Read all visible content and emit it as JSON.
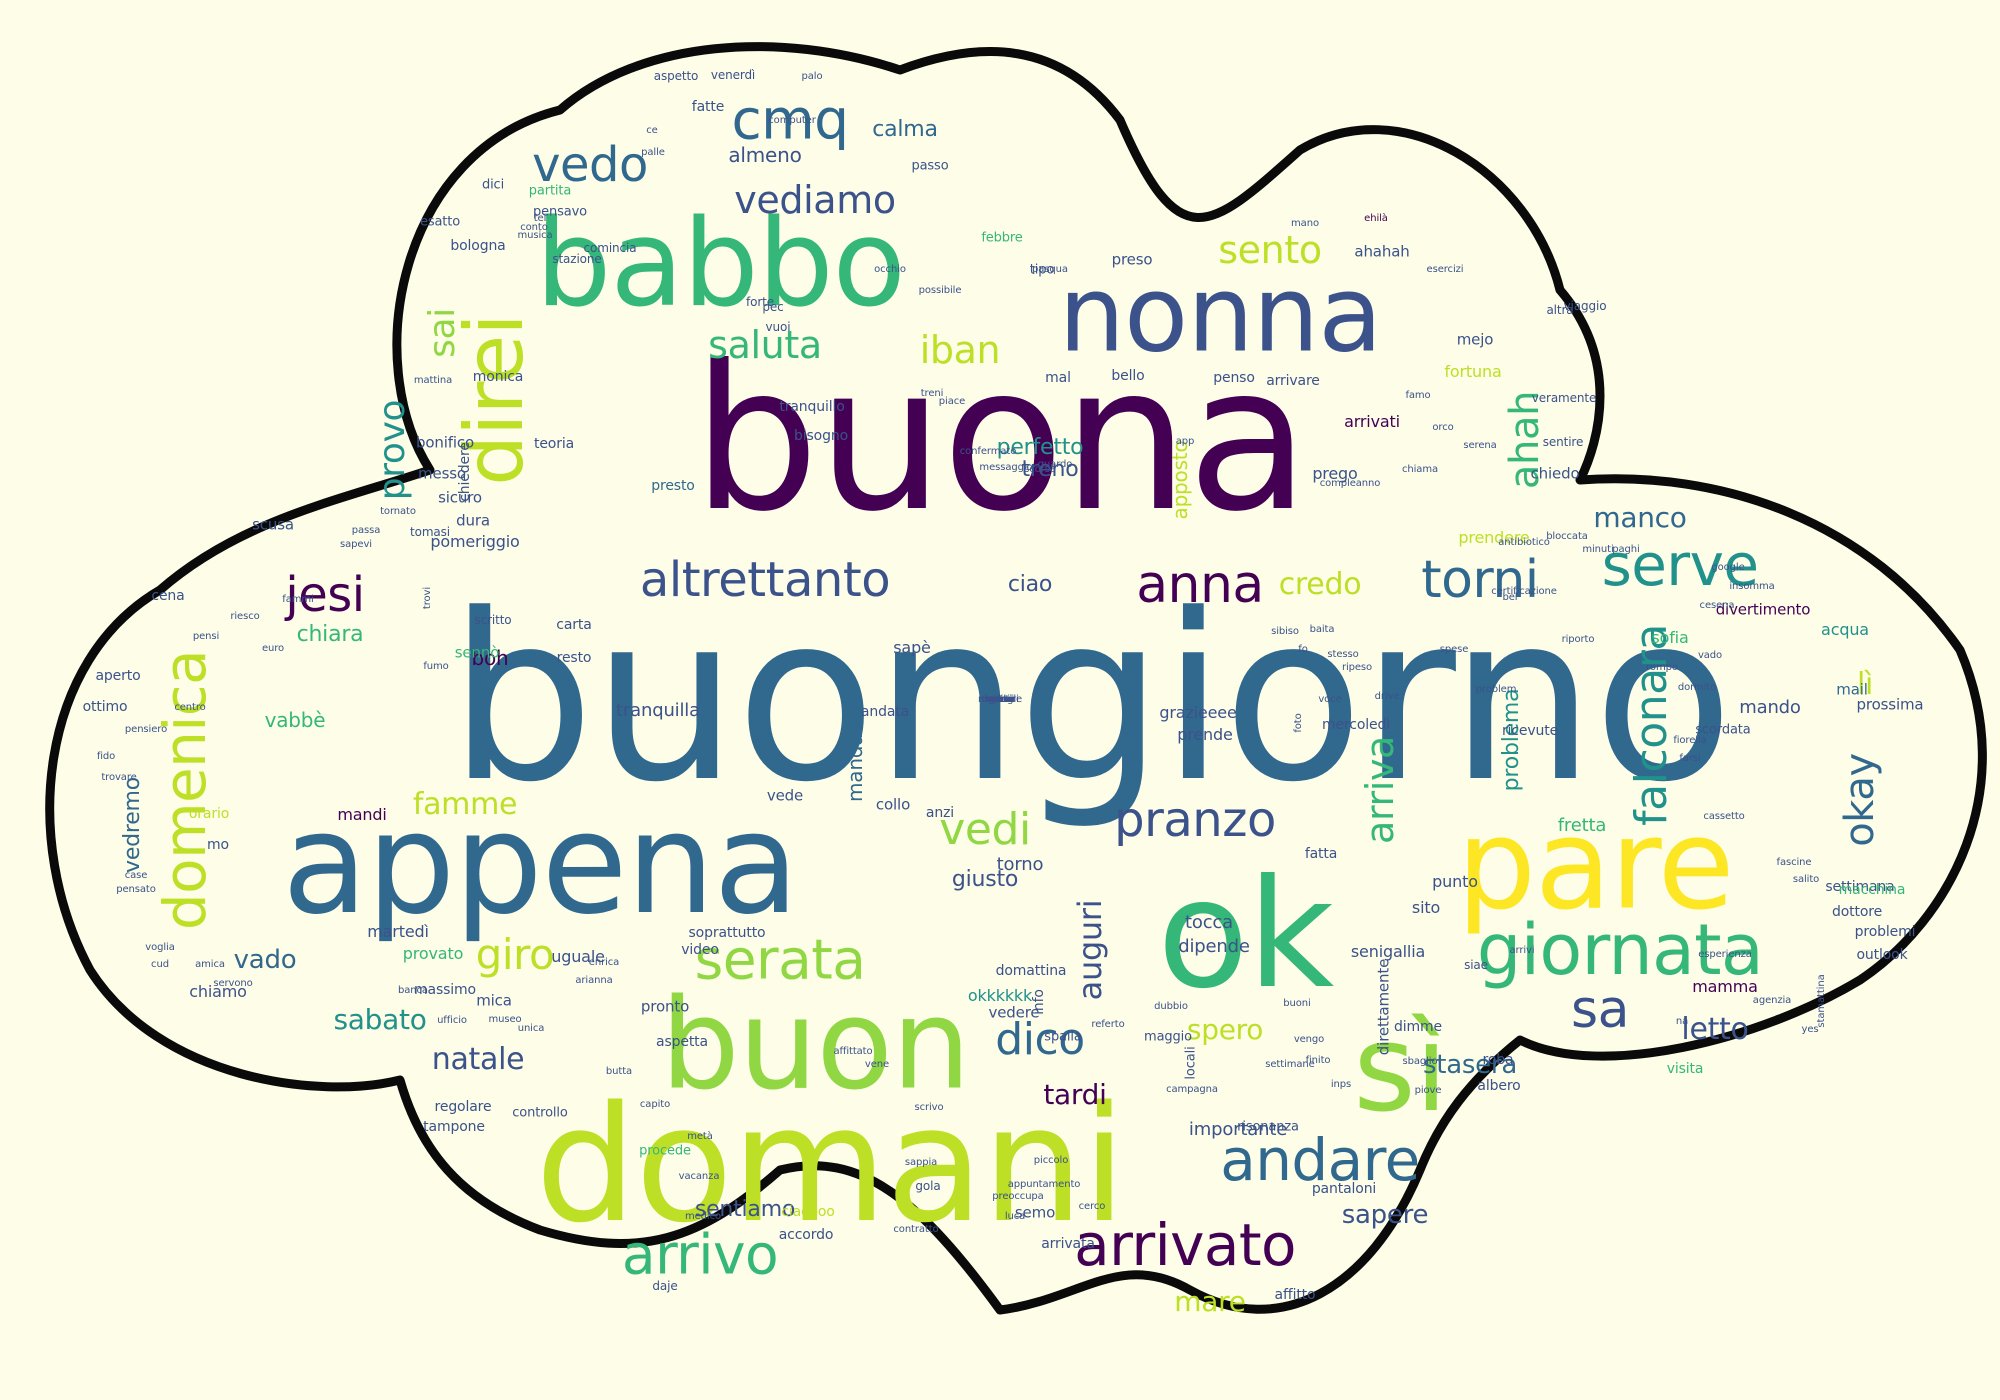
{
  "palette": {
    "background": "#fdfde8",
    "cloud_fill": "#fdfde8",
    "cloud_outline": "#0a0a0a",
    "shades": [
      "#440154",
      "#3b528b",
      "#31688e",
      "#21918c",
      "#35b779",
      "#90d743",
      "#bddf26",
      "#fde725"
    ]
  },
  "words": [
    {
      "t": "buongiorno",
      "c": "#31688e"
    },
    {
      "t": "buona",
      "c": "#440154"
    },
    {
      "t": "domani",
      "c": "#bddf26"
    },
    {
      "t": "appena",
      "c": "#31688e"
    },
    {
      "t": "ok",
      "c": "#35b779"
    },
    {
      "t": "pare",
      "c": "#fde725"
    },
    {
      "t": "babbo",
      "c": "#35b779"
    },
    {
      "t": "nonna",
      "c": "#3b528b"
    },
    {
      "t": "buon",
      "c": "#90d743"
    },
    {
      "t": "sì",
      "c": "#90d743"
    },
    {
      "t": "direi",
      "c": "#bddf26",
      "r": 1
    },
    {
      "t": "giornata",
      "c": "#35b779"
    },
    {
      "t": "arrivato",
      "c": "#440154"
    },
    {
      "t": "andare",
      "c": "#31688e"
    },
    {
      "t": "arrivo",
      "c": "#35b779"
    },
    {
      "t": "serata",
      "c": "#90d743"
    },
    {
      "t": "domenica",
      "c": "#bddf26",
      "r": 1
    },
    {
      "t": "altrettanto",
      "c": "#3b528b"
    },
    {
      "t": "anna",
      "c": "#440154"
    },
    {
      "t": "torni",
      "c": "#31688e"
    },
    {
      "t": "serve",
      "c": "#21918c"
    },
    {
      "t": "jesi",
      "c": "#440154"
    },
    {
      "t": "cmq",
      "c": "#31688e"
    },
    {
      "t": "vedo",
      "c": "#31688e"
    },
    {
      "t": "vediamo",
      "c": "#3b528b"
    },
    {
      "t": "sento",
      "c": "#bddf26"
    },
    {
      "t": "saluta",
      "c": "#35b779"
    },
    {
      "t": "iban",
      "c": "#bddf26"
    },
    {
      "t": "sai",
      "c": "#90d743",
      "r": 1
    },
    {
      "t": "provo",
      "c": "#21918c",
      "r": 1
    },
    {
      "t": "ahah",
      "c": "#35b779",
      "r": 1
    },
    {
      "t": "pranzo",
      "c": "#3b528b"
    },
    {
      "t": "vedi",
      "c": "#90d743"
    },
    {
      "t": "dico",
      "c": "#31688e"
    },
    {
      "t": "sa",
      "c": "#3b528b"
    },
    {
      "t": "giro",
      "c": "#bddf26"
    },
    {
      "t": "falconara",
      "c": "#21918c",
      "r": 1
    },
    {
      "t": "okay",
      "c": "#31688e",
      "r": 1
    },
    {
      "t": "arriva",
      "c": "#35b779",
      "r": 1
    },
    {
      "t": "credo",
      "c": "#bddf26"
    },
    {
      "t": "manco",
      "c": "#31688e"
    },
    {
      "t": "auguri",
      "c": "#3b528b",
      "r": 1
    },
    {
      "t": "famme",
      "c": "#bddf26"
    },
    {
      "t": "spero",
      "c": "#bddf26"
    },
    {
      "t": "stasera",
      "c": "#31688e"
    },
    {
      "t": "letto",
      "c": "#3b528b"
    },
    {
      "t": "natale",
      "c": "#3b528b"
    },
    {
      "t": "sabato",
      "c": "#21918c"
    },
    {
      "t": "vado",
      "c": "#31688e"
    },
    {
      "t": "mare",
      "c": "#bddf26"
    },
    {
      "t": "sapere",
      "c": "#3b528b"
    },
    {
      "t": "tardi",
      "c": "#440154"
    },
    {
      "t": "sentiamo",
      "c": "#3b528b"
    },
    {
      "t": "perfetto",
      "c": "#21918c"
    },
    {
      "t": "chiara",
      "c": "#35b779"
    },
    {
      "t": "ciao",
      "c": "#3b528b"
    },
    {
      "t": "treno",
      "c": "#3b528b"
    },
    {
      "t": "apposto",
      "c": "#bddf26",
      "r": 1
    },
    {
      "t": "calma",
      "c": "#31688e"
    },
    {
      "t": "almeno",
      "c": "#3b528b"
    },
    {
      "t": "lì",
      "c": "#bddf26"
    },
    {
      "t": "problema",
      "c": "#21918c",
      "r": 1
    },
    {
      "t": "mandato",
      "c": "#31688e",
      "r": 1
    },
    {
      "t": "giusto",
      "c": "#3b528b"
    },
    {
      "t": "torno",
      "c": "#3b528b"
    },
    {
      "t": "boh",
      "c": "#440154"
    },
    {
      "t": "tranquilla",
      "c": "#3b528b"
    },
    {
      "t": "importante",
      "c": "#3b528b"
    },
    {
      "t": "vedremo",
      "c": "#31688e",
      "r": 1
    },
    {
      "t": "vabbè",
      "c": "#35b779"
    },
    {
      "t": "mando",
      "c": "#3b528b"
    },
    {
      "t": "acqua",
      "c": "#21918c"
    },
    {
      "t": "fretta",
      "c": "#35b779"
    },
    {
      "t": "okkkkkk",
      "c": "#21918c"
    },
    {
      "t": "tocca",
      "c": "#3b528b"
    },
    {
      "t": "dipende",
      "c": "#3b528b"
    },
    {
      "t": "grazieeee",
      "c": "#3b528b"
    },
    {
      "t": "prende",
      "c": "#3b528b"
    },
    {
      "t": "pomeriggio",
      "c": "#3b528b"
    },
    {
      "t": "cena",
      "c": "#3b528b"
    },
    {
      "t": "prego",
      "c": "#3b528b"
    },
    {
      "t": "presto",
      "c": "#31688e"
    },
    {
      "t": "chiedo",
      "c": "#3b528b"
    },
    {
      "t": "divertimento",
      "c": "#440154"
    },
    {
      "t": "sofia",
      "c": "#35b779"
    },
    {
      "t": "mail",
      "c": "#31688e"
    },
    {
      "t": "prossima",
      "c": "#3b528b"
    },
    {
      "t": "settimana",
      "c": "#3b528b"
    },
    {
      "t": "mamma",
      "c": "#440154"
    },
    {
      "t": "uguale",
      "c": "#3b528b"
    },
    {
      "t": "massimo",
      "c": "#3b528b"
    },
    {
      "t": "chiamo",
      "c": "#3b528b"
    },
    {
      "t": "provato",
      "c": "#35b779"
    },
    {
      "t": "martedì",
      "c": "#3b528b"
    },
    {
      "t": "mandi",
      "c": "#440154"
    },
    {
      "t": "senigallia",
      "c": "#3b528b"
    },
    {
      "t": "punto",
      "c": "#3b528b"
    },
    {
      "t": "sito",
      "c": "#3b528b"
    },
    {
      "t": "ahahah",
      "c": "#3b528b"
    },
    {
      "t": "preso",
      "c": "#3b528b"
    },
    {
      "t": "mejo",
      "c": "#3b528b"
    },
    {
      "t": "fortuna",
      "c": "#bddf26"
    },
    {
      "t": "arrivati",
      "c": "#440154"
    },
    {
      "t": "arrivare",
      "c": "#3b528b"
    },
    {
      "t": "bonifico",
      "c": "#3b528b"
    },
    {
      "t": "messo",
      "c": "#3b528b"
    },
    {
      "t": "sicuro",
      "c": "#3b528b"
    },
    {
      "t": "dura",
      "c": "#3b528b"
    },
    {
      "t": "teoria",
      "c": "#3b528b"
    },
    {
      "t": "bisogno",
      "c": "#3b528b"
    },
    {
      "t": "tranquillo",
      "c": "#3b528b"
    },
    {
      "t": "monica",
      "c": "#3b528b"
    },
    {
      "t": "bologna",
      "c": "#3b528b"
    },
    {
      "t": "esatto",
      "c": "#3b528b"
    },
    {
      "t": "partita",
      "c": "#35b779"
    },
    {
      "t": "pensavo",
      "c": "#3b528b"
    },
    {
      "t": "dici",
      "c": "#3b528b"
    },
    {
      "t": "passo",
      "c": "#3b528b"
    },
    {
      "t": "tipo",
      "c": "#3b528b"
    },
    {
      "t": "febbre",
      "c": "#35b779"
    },
    {
      "t": "mal",
      "c": "#3b528b"
    },
    {
      "t": "bello",
      "c": "#3b528b"
    },
    {
      "t": "penso",
      "c": "#3b528b"
    },
    {
      "t": "fatte",
      "c": "#3b528b"
    },
    {
      "t": "prendere",
      "c": "#bddf26"
    },
    {
      "t": "scusa",
      "c": "#3b528b"
    },
    {
      "t": "sennò",
      "c": "#35b779"
    },
    {
      "t": "ottimo",
      "c": "#3b528b"
    },
    {
      "t": "sapè",
      "c": "#3b528b"
    },
    {
      "t": "carta",
      "c": "#3b528b"
    },
    {
      "t": "resto",
      "c": "#3b528b"
    },
    {
      "t": "andata",
      "c": "#3b528b"
    },
    {
      "t": "vedere",
      "c": "#3b528b"
    },
    {
      "t": "domattina",
      "c": "#3b528b"
    },
    {
      "t": "info",
      "c": "#3b528b",
      "r": 1
    },
    {
      "t": "mica",
      "c": "#3b528b"
    },
    {
      "t": "pronto",
      "c": "#3b528b"
    },
    {
      "t": "video",
      "c": "#3b528b"
    },
    {
      "t": "soprattutto",
      "c": "#3b528b"
    },
    {
      "t": "aspetta",
      "c": "#3b528b"
    },
    {
      "t": "scordata",
      "c": "#3b528b"
    },
    {
      "t": "ricevute",
      "c": "#3b528b"
    },
    {
      "t": "fatta",
      "c": "#3b528b"
    },
    {
      "t": "mercoledì",
      "c": "#3b528b"
    },
    {
      "t": "direttamente",
      "c": "#3b528b",
      "r": 1
    },
    {
      "t": "ciaoooo",
      "c": "#bddf26"
    },
    {
      "t": "accordo",
      "c": "#3b528b"
    },
    {
      "t": "semo",
      "c": "#3b528b"
    },
    {
      "t": "pantaloni",
      "c": "#3b528b"
    },
    {
      "t": "affitto",
      "c": "#3b528b"
    },
    {
      "t": "arrivata",
      "c": "#3b528b"
    },
    {
      "t": "regolare",
      "c": "#3b528b"
    },
    {
      "t": "tampone",
      "c": "#3b528b"
    },
    {
      "t": "controllo",
      "c": "#3b528b"
    },
    {
      "t": "procede",
      "c": "#35b779"
    },
    {
      "t": "dimme",
      "c": "#3b528b"
    },
    {
      "t": "roba",
      "c": "#3b528b"
    },
    {
      "t": "albero",
      "c": "#3b528b"
    },
    {
      "t": "visita",
      "c": "#35b779"
    },
    {
      "t": "outlook",
      "c": "#3b528b"
    },
    {
      "t": "problemi",
      "c": "#3b528b"
    },
    {
      "t": "dottore",
      "c": "#3b528b"
    },
    {
      "t": "macchina",
      "c": "#35b779"
    },
    {
      "t": "vede",
      "c": "#3b528b"
    },
    {
      "t": "collo",
      "c": "#3b528b"
    },
    {
      "t": "anzi",
      "c": "#3b528b"
    },
    {
      "t": "mo",
      "c": "#3b528b"
    },
    {
      "t": "orario",
      "c": "#bddf26"
    },
    {
      "t": "aperto",
      "c": "#3b528b"
    },
    {
      "t": "tomasi",
      "c": "#3b528b"
    },
    {
      "t": "chiedere",
      "c": "#3b528b",
      "r": 1
    },
    {
      "t": "locali",
      "c": "#3b528b",
      "r": 1
    },
    {
      "t": "spalla",
      "c": "#3b528b"
    },
    {
      "t": "maggio",
      "c": "#3b528b"
    },
    {
      "t": "risonanza",
      "c": "#3b528b"
    },
    {
      "t": "gola",
      "c": "#3b528b"
    },
    {
      "t": "scritto",
      "c": "#3b528b"
    },
    {
      "t": "daje",
      "c": "#3b528b"
    },
    {
      "t": "siae",
      "c": "#3b528b"
    },
    {
      "t": "viaggio",
      "c": "#3b528b"
    },
    {
      "t": "altra",
      "c": "#3b528b"
    },
    {
      "t": "veramente",
      "c": "#3b528b"
    },
    {
      "t": "sentire",
      "c": "#3b528b"
    },
    {
      "t": "forte",
      "c": "#3b528b"
    },
    {
      "t": "vuoi",
      "c": "#3b528b"
    },
    {
      "t": "pec",
      "c": "#3b528b"
    },
    {
      "t": "stazione",
      "c": "#3b528b"
    },
    {
      "t": "comincia",
      "c": "#3b528b"
    },
    {
      "t": "mattina",
      "c": "#3b528b"
    },
    {
      "t": "venerdì",
      "c": "#3b528b"
    },
    {
      "t": "aspetto",
      "c": "#3b528b"
    },
    {
      "t": "palo",
      "c": "#3b528b"
    },
    {
      "t": "computer",
      "c": "#3b528b"
    },
    {
      "t": "ehilà",
      "c": "#440154"
    },
    {
      "t": "mano",
      "c": "#3b528b"
    },
    {
      "t": "ce",
      "c": "#3b528b"
    },
    {
      "t": "palle",
      "c": "#3b528b"
    },
    {
      "t": "tel",
      "c": "#3b528b"
    },
    {
      "t": "conto",
      "c": "#3b528b"
    },
    {
      "t": "musica",
      "c": "#3b528b"
    },
    {
      "t": "occhio",
      "c": "#3b528b"
    },
    {
      "t": "pasqua",
      "c": "#3b528b"
    },
    {
      "t": "esercizi",
      "c": "#3b528b"
    },
    {
      "t": "possibile",
      "c": "#3b528b"
    },
    {
      "t": "treni",
      "c": "#3b528b"
    },
    {
      "t": "piace",
      "c": "#3b528b"
    },
    {
      "t": "confermato",
      "c": "#3b528b"
    },
    {
      "t": "messaggio",
      "c": "#3b528b"
    },
    {
      "t": "scorsa",
      "c": "#3b528b"
    },
    {
      "t": "guardo",
      "c": "#3b528b"
    },
    {
      "t": "app",
      "c": "#3b528b"
    },
    {
      "t": "famo",
      "c": "#3b528b"
    },
    {
      "t": "orco",
      "c": "#3b528b"
    },
    {
      "t": "serena",
      "c": "#3b528b"
    },
    {
      "t": "chiama",
      "c": "#3b528b"
    },
    {
      "t": "compleanno",
      "c": "#3b528b"
    },
    {
      "t": "bel",
      "c": "#3b528b"
    },
    {
      "t": "spese",
      "c": "#3b528b"
    },
    {
      "t": "problem",
      "c": "#3b528b"
    },
    {
      "t": "vado",
      "c": "#3b528b"
    },
    {
      "t": "cesena",
      "c": "#3b528b"
    },
    {
      "t": "insomma",
      "c": "#3b528b"
    },
    {
      "t": "google",
      "c": "#3b528b"
    },
    {
      "t": "paghi",
      "c": "#3b528b"
    },
    {
      "t": "minuti",
      "c": "#3b528b"
    },
    {
      "t": "bloccata",
      "c": "#3b528b"
    },
    {
      "t": "antibiotico",
      "c": "#3b528b"
    },
    {
      "t": "certificazione",
      "c": "#3b528b"
    },
    {
      "t": "riporto",
      "c": "#3b528b"
    },
    {
      "t": "rompo",
      "c": "#3b528b"
    },
    {
      "t": "dormito",
      "c": "#3b528b"
    },
    {
      "t": "fiorella",
      "c": "#3b528b"
    },
    {
      "t": "farsi",
      "c": "#3b528b"
    },
    {
      "t": "cassetto",
      "c": "#3b528b"
    },
    {
      "t": "fascine",
      "c": "#3b528b"
    },
    {
      "t": "salito",
      "c": "#3b528b"
    },
    {
      "t": "agenzia",
      "c": "#3b528b"
    },
    {
      "t": "stamattina",
      "c": "#3b528b",
      "r": 1
    },
    {
      "t": "yes",
      "c": "#3b528b"
    },
    {
      "t": "na",
      "c": "#3b528b"
    },
    {
      "t": "esperienza",
      "c": "#3b528b"
    },
    {
      "t": "arrivi",
      "c": "#3b528b"
    },
    {
      "t": "sbaglio",
      "c": "#3b528b"
    },
    {
      "t": "piove",
      "c": "#3b528b"
    },
    {
      "t": "inps",
      "c": "#3b528b"
    },
    {
      "t": "finito",
      "c": "#3b528b"
    },
    {
      "t": "vengo",
      "c": "#3b528b"
    },
    {
      "t": "buoni",
      "c": "#3b528b"
    },
    {
      "t": "referto",
      "c": "#3b528b"
    },
    {
      "t": "dubbio",
      "c": "#3b528b"
    },
    {
      "t": "campagna",
      "c": "#3b528b"
    },
    {
      "t": "settimane",
      "c": "#3b528b"
    },
    {
      "t": "cerco",
      "c": "#3b528b"
    },
    {
      "t": "appuntamento",
      "c": "#3b528b"
    },
    {
      "t": "piccolo",
      "c": "#3b528b"
    },
    {
      "t": "luca",
      "c": "#3b528b"
    },
    {
      "t": "preoccupa",
      "c": "#3b528b"
    },
    {
      "t": "contratto",
      "c": "#3b528b"
    },
    {
      "t": "sappia",
      "c": "#3b528b"
    },
    {
      "t": "scrivo",
      "c": "#3b528b"
    },
    {
      "t": "vene",
      "c": "#3b528b"
    },
    {
      "t": "affittato",
      "c": "#3b528b"
    },
    {
      "t": "medico",
      "c": "#3b528b"
    },
    {
      "t": "vacanza",
      "c": "#3b528b"
    },
    {
      "t": "metà",
      "c": "#3b528b"
    },
    {
      "t": "capito",
      "c": "#3b528b"
    },
    {
      "t": "butta",
      "c": "#3b528b"
    },
    {
      "t": "arianna",
      "c": "#3b528b"
    },
    {
      "t": "enrica",
      "c": "#3b528b"
    },
    {
      "t": "unica",
      "c": "#3b528b"
    },
    {
      "t": "museo",
      "c": "#3b528b"
    },
    {
      "t": "ufficio",
      "c": "#3b528b"
    },
    {
      "t": "banca",
      "c": "#3b528b"
    },
    {
      "t": "servono",
      "c": "#3b528b"
    },
    {
      "t": "amica",
      "c": "#3b528b"
    },
    {
      "t": "cud",
      "c": "#3b528b"
    },
    {
      "t": "voglia",
      "c": "#3b528b"
    },
    {
      "t": "pensato",
      "c": "#3b528b"
    },
    {
      "t": "case",
      "c": "#3b528b"
    },
    {
      "t": "trovare",
      "c": "#3b528b"
    },
    {
      "t": "fido",
      "c": "#3b528b"
    },
    {
      "t": "pensiero",
      "c": "#3b528b"
    },
    {
      "t": "centro",
      "c": "#3b528b"
    },
    {
      "t": "pensi",
      "c": "#3b528b"
    },
    {
      "t": "riesco",
      "c": "#3b528b"
    },
    {
      "t": "euro",
      "c": "#3b528b"
    },
    {
      "t": "fammi",
      "c": "#3b528b"
    },
    {
      "t": "sapevi",
      "c": "#3b528b"
    },
    {
      "t": "passa",
      "c": "#3b528b"
    },
    {
      "t": "tornato",
      "c": "#3b528b"
    },
    {
      "t": "trovi",
      "c": "#3b528b",
      "r": 1
    },
    {
      "t": "fumo",
      "c": "#3b528b"
    },
    {
      "t": "baita",
      "c": "#3b528b"
    },
    {
      "t": "stesso",
      "c": "#3b528b"
    },
    {
      "t": "sibiso",
      "c": "#3b528b"
    },
    {
      "t": "fo",
      "c": "#3b528b"
    },
    {
      "t": "ripeso",
      "c": "#3b528b"
    },
    {
      "t": "drive",
      "c": "#3b528b"
    },
    {
      "t": "voce",
      "c": "#3b528b"
    },
    {
      "t": "foto",
      "c": "#3b528b",
      "r": 1
    },
    {
      "t": "salito",
      "c": "#3b528b"
    },
    {
      "t": "vene",
      "c": "#3b528b"
    },
    {
      "t": "gravi",
      "c": "#3b528b"
    },
    {
      "t": "dettagli",
      "c": "#3b528b"
    },
    {
      "t": "mandare",
      "c": "#3b528b"
    },
    {
      "t": "sera",
      "c": "#3b528b"
    },
    {
      "t": "ormai",
      "c": "#3b528b"
    },
    {
      "t": "mattia",
      "c": "#3b528b"
    },
    {
      "t": "pw",
      "c": "#3b528b"
    },
    {
      "t": "senti",
      "c": "#3b528b"
    }
  ]
}
